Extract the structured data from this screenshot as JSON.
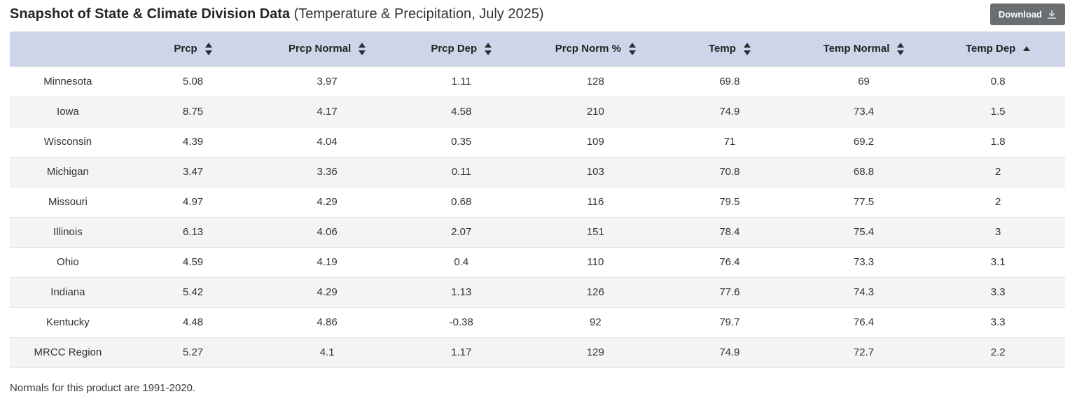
{
  "page": {
    "title_bold": "Snapshot of State & Climate Division Data",
    "title_rest": "(Temperature & Precipitation, July 2025)",
    "footnote": "Normals for this product are 1991-2020."
  },
  "toolbar": {
    "download_label": "Download",
    "download_icon": "download-icon"
  },
  "colors": {
    "header_bg": "#cdd6e8",
    "stripe_bg": "#f3f4f6",
    "button_bg": "#6b6e71",
    "body_text": "#333333",
    "header_text": "#212121"
  },
  "table": {
    "columns": [
      {
        "id": "state",
        "label": "",
        "sort": "none"
      },
      {
        "id": "prcp",
        "label": "Prcp",
        "sort": "both"
      },
      {
        "id": "prcp-normal",
        "label": "Prcp Normal",
        "sort": "both"
      },
      {
        "id": "prcp-dep",
        "label": "Prcp Dep",
        "sort": "both"
      },
      {
        "id": "prcp-norm-pct",
        "label": "Prcp Norm %",
        "sort": "both"
      },
      {
        "id": "temp",
        "label": "Temp",
        "sort": "both"
      },
      {
        "id": "temp-normal",
        "label": "Temp Normal",
        "sort": "both"
      },
      {
        "id": "temp-dep",
        "label": "Temp Dep",
        "sort": "asc"
      }
    ],
    "rows": [
      {
        "name": "Minnesota",
        "values": [
          "5.08",
          "3.97",
          "1.11",
          "128",
          "69.8",
          "69",
          "0.8"
        ]
      },
      {
        "name": "Iowa",
        "values": [
          "8.75",
          "4.17",
          "4.58",
          "210",
          "74.9",
          "73.4",
          "1.5"
        ]
      },
      {
        "name": "Wisconsin",
        "values": [
          "4.39",
          "4.04",
          "0.35",
          "109",
          "71",
          "69.2",
          "1.8"
        ]
      },
      {
        "name": "Michigan",
        "values": [
          "3.47",
          "3.36",
          "0.11",
          "103",
          "70.8",
          "68.8",
          "2"
        ]
      },
      {
        "name": "Missouri",
        "values": [
          "4.97",
          "4.29",
          "0.68",
          "116",
          "79.5",
          "77.5",
          "2"
        ]
      },
      {
        "name": "Illinois",
        "values": [
          "6.13",
          "4.06",
          "2.07",
          "151",
          "78.4",
          "75.4",
          "3"
        ]
      },
      {
        "name": "Ohio",
        "values": [
          "4.59",
          "4.19",
          "0.4",
          "110",
          "76.4",
          "73.3",
          "3.1"
        ]
      },
      {
        "name": "Indiana",
        "values": [
          "5.42",
          "4.29",
          "1.13",
          "126",
          "77.6",
          "74.3",
          "3.3"
        ]
      },
      {
        "name": "Kentucky",
        "values": [
          "4.48",
          "4.86",
          "-0.38",
          "92",
          "79.7",
          "76.4",
          "3.3"
        ]
      },
      {
        "name": "MRCC Region",
        "values": [
          "5.27",
          "4.1",
          "1.17",
          "129",
          "74.9",
          "72.7",
          "2.2"
        ]
      }
    ]
  }
}
